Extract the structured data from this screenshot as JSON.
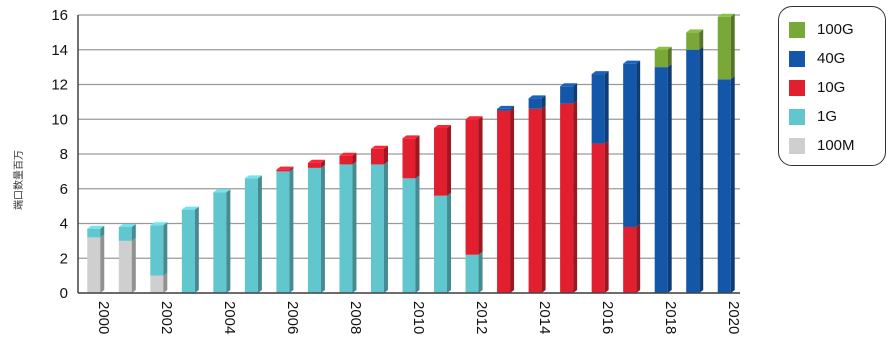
{
  "chart_data": {
    "type": "bar",
    "stacked": true,
    "ylabel": "端口数量百万",
    "ylim": [
      0,
      16
    ],
    "yticks": [
      "0",
      "2",
      "4",
      "6",
      "8",
      "10",
      "12",
      "14",
      "16"
    ],
    "categories": [
      "2000",
      "2001",
      "2002",
      "2003",
      "2004",
      "2005",
      "2006",
      "2007",
      "2008",
      "2009",
      "2010",
      "2011",
      "2012",
      "2013",
      "2014",
      "2015",
      "2016",
      "2017",
      "2018",
      "2019",
      "2020"
    ],
    "xtick_labels": [
      "2000",
      "2002",
      "2004",
      "2006",
      "2008",
      "2010",
      "2012",
      "2014",
      "2016",
      "2018",
      "2020"
    ],
    "series": [
      {
        "name": "100M",
        "color": "#cfcfcf",
        "values": [
          3.2,
          3.0,
          1.0,
          0,
          0,
          0,
          0,
          0,
          0,
          0,
          0,
          0,
          0,
          0,
          0,
          0,
          0,
          0,
          0,
          0,
          0
        ]
      },
      {
        "name": "1G",
        "color": "#62c6cf",
        "values": [
          0.5,
          0.8,
          2.9,
          4.8,
          5.8,
          6.6,
          7.0,
          7.2,
          7.4,
          7.4,
          6.6,
          5.6,
          2.2,
          0,
          0,
          0,
          0,
          0,
          0,
          0,
          0
        ]
      },
      {
        "name": "10G",
        "color": "#e21f2e",
        "values": [
          0,
          0,
          0,
          0,
          0,
          0,
          0.1,
          0.3,
          0.5,
          0.9,
          2.3,
          3.9,
          7.8,
          10.5,
          10.6,
          10.9,
          8.6,
          3.8,
          0,
          0,
          0
        ]
      },
      {
        "name": "40G",
        "color": "#1456a8",
        "values": [
          0,
          0,
          0,
          0,
          0,
          0,
          0,
          0,
          0,
          0,
          0,
          0,
          0,
          0.1,
          0.6,
          1.0,
          4.0,
          9.4,
          13.0,
          14.0,
          12.3
        ]
      },
      {
        "name": "100G",
        "color": "#7aa838",
        "values": [
          0,
          0,
          0,
          0,
          0,
          0,
          0,
          0,
          0,
          0,
          0,
          0,
          0,
          0,
          0,
          0,
          0,
          0,
          1.0,
          1.0,
          3.6
        ]
      }
    ],
    "legend_order": [
      "100G",
      "40G",
      "10G",
      "1G",
      "100M"
    ],
    "legend_position": "right",
    "grid": true
  }
}
